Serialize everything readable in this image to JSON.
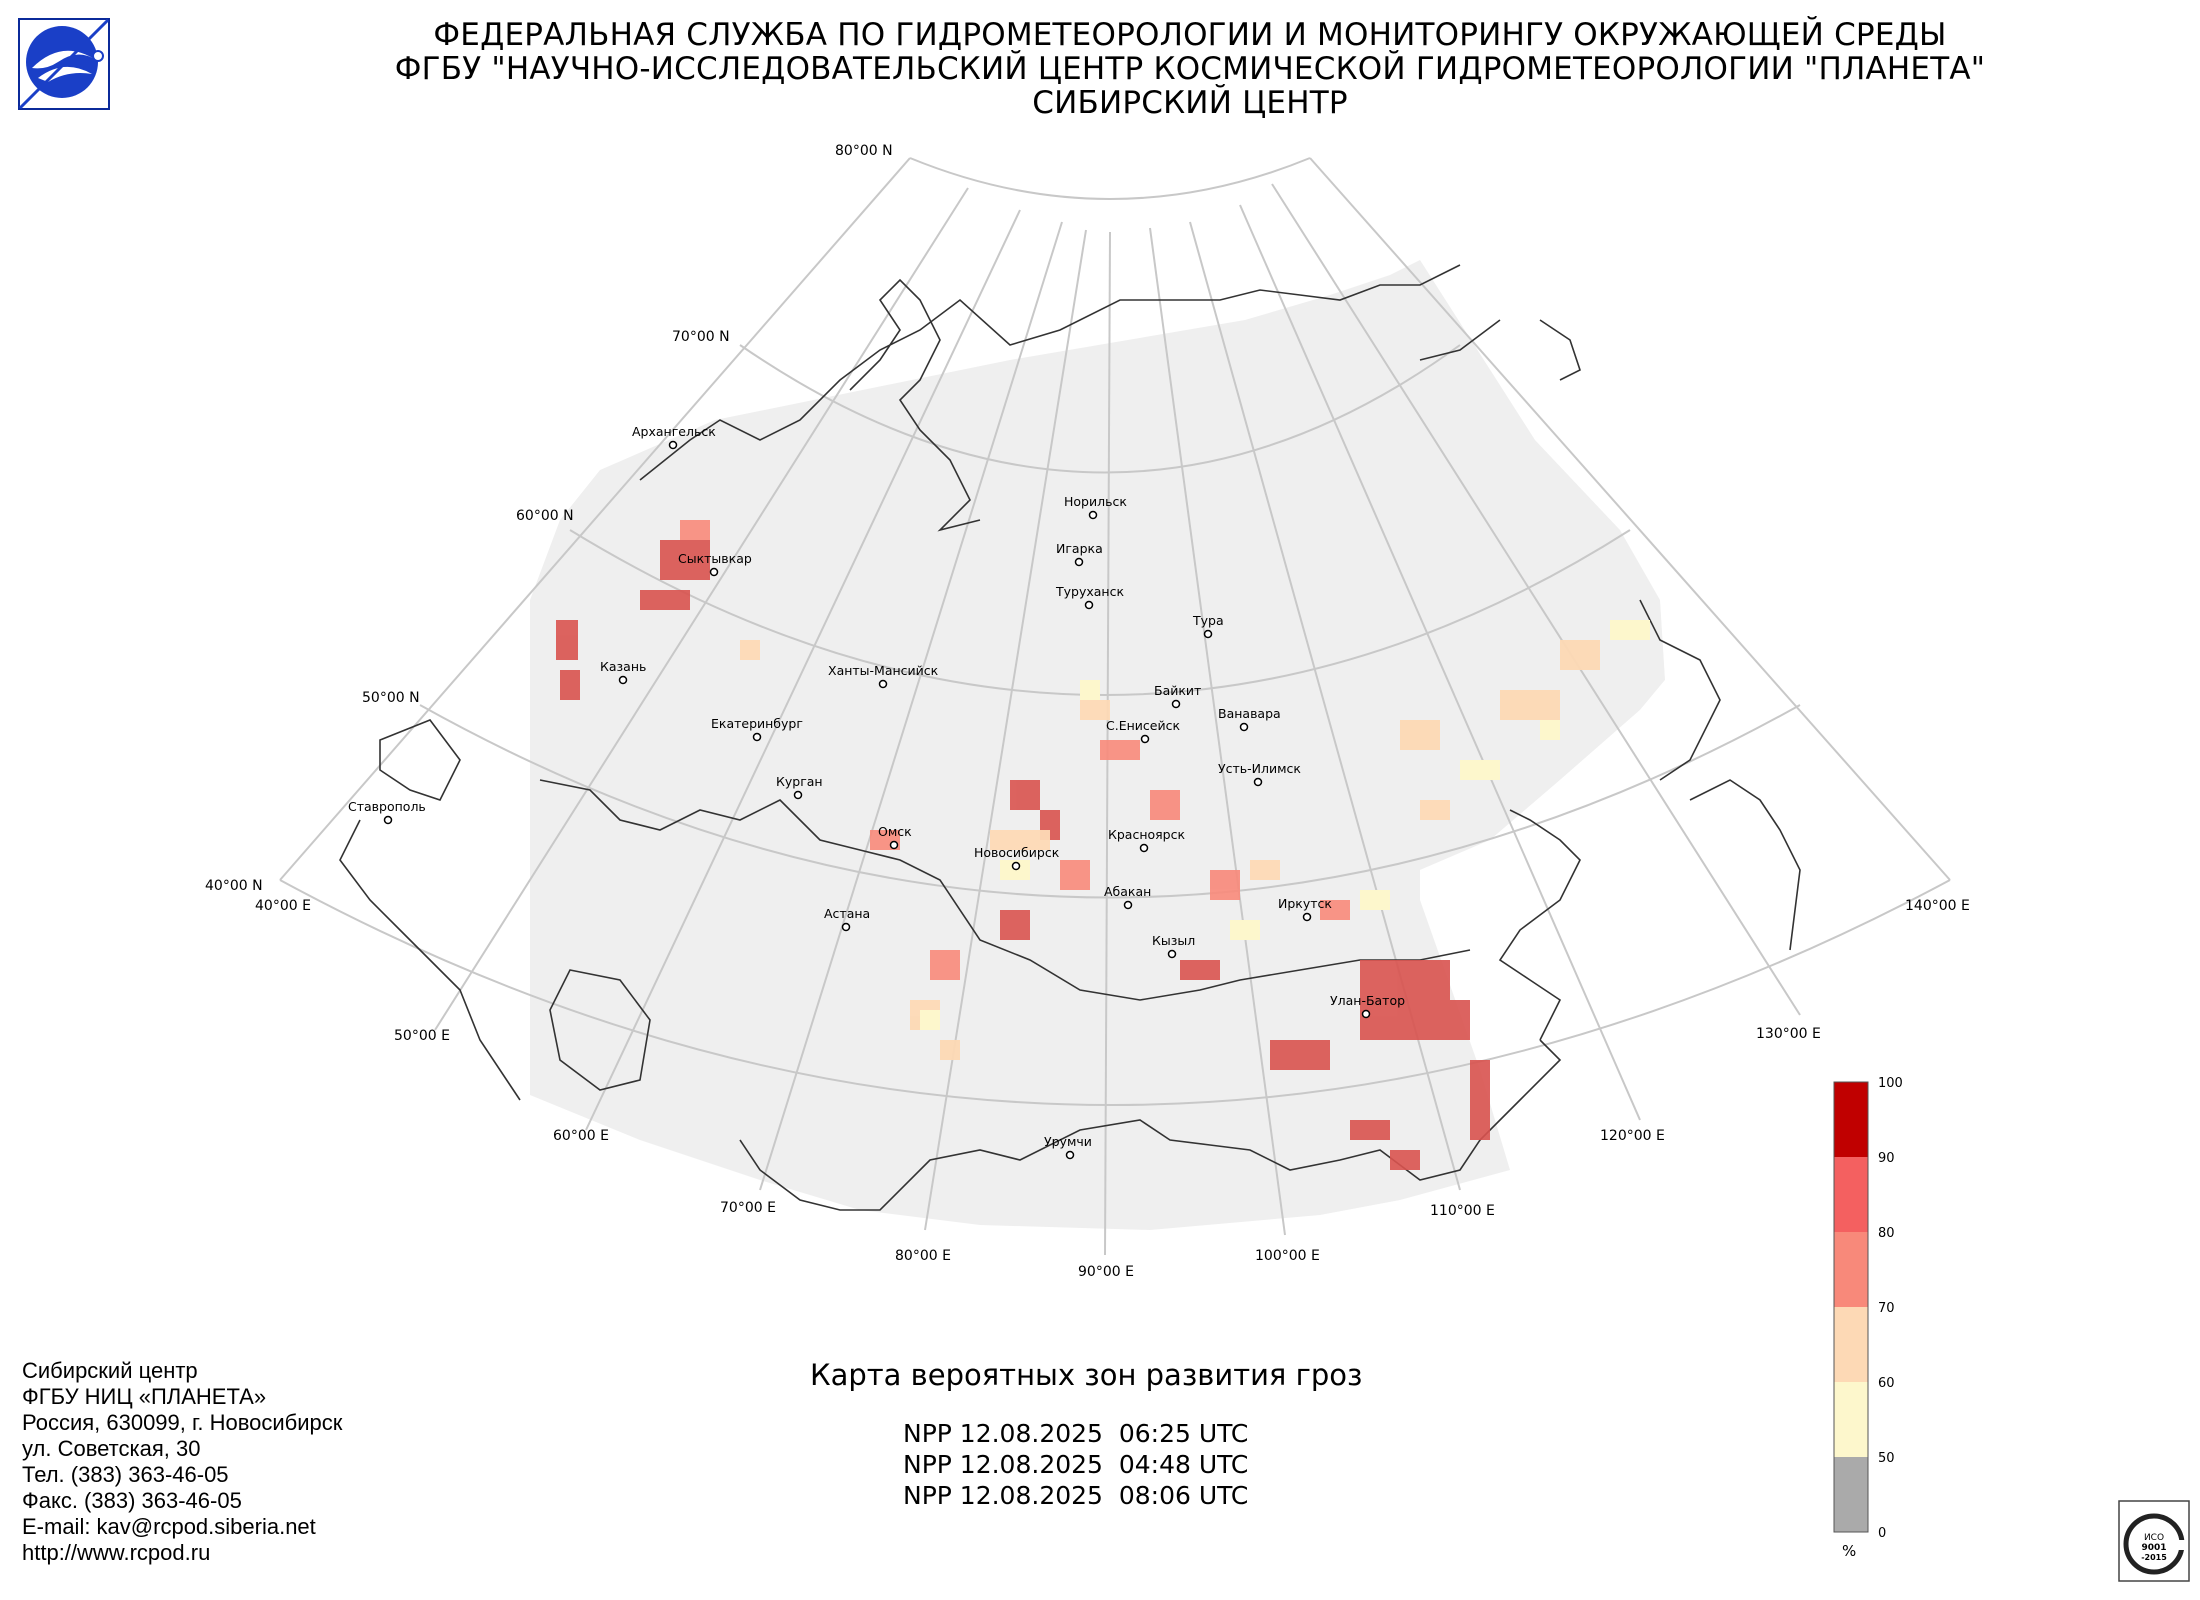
{
  "header": {
    "line1": "ФЕДЕРАЛЬНАЯ СЛУЖБА ПО ГИДРОМЕТЕОРОЛОГИИ И МОНИТОРИНГУ ОКРУЖАЮЩЕЙ СРЕДЫ",
    "line2": "ФГБУ \"НАУЧНО-ИССЛЕДОВАТЕЛЬСКИЙ ЦЕНТР КОСМИЧЕСКОЙ ГИДРОМЕТЕОРОЛОГИИ \"ПЛАНЕТА\"",
    "line3": "СИБИРСКИЙ ЦЕНТР"
  },
  "map": {
    "lat_labels": [
      "80°00 N",
      "70°00 N",
      "60°00 N",
      "50°00 N",
      "40°00 N"
    ],
    "lon_labels": [
      "40°00 E",
      "50°00 E",
      "60°00 E",
      "70°00 E",
      "80°00 E",
      "90°00 E",
      "100°00 E",
      "110°00 E",
      "120°00 E",
      "130°00 E",
      "140°00 E"
    ],
    "cities": [
      "Архангельск",
      "Сыктывкар",
      "Казань",
      "Екатеринбург",
      "Курган",
      "Ставрополь",
      "Омск",
      "Астана",
      "Ханты-Мансийск",
      "Новосибирск",
      "Норильск",
      "Игарка",
      "Туруханск",
      "Тура",
      "Байкит",
      "Ванавара",
      "С.Енисейск",
      "Усть-Илимск",
      "Красноярск",
      "Абакан",
      "Кызыл",
      "Иркутск",
      "Улан-Батор",
      "Урумчи"
    ]
  },
  "legend": {
    "ticks": [
      "100",
      "90",
      "80",
      "70",
      "60",
      "50",
      "0"
    ],
    "colors": [
      "#c00000",
      "#f46060",
      "#f8897a",
      "#fdd9b5",
      "#fdf7cc",
      "#aaaaaa"
    ],
    "unit": "%"
  },
  "footer": {
    "org_lines": [
      "Сибирский центр",
      "ФГБУ НИЦ «ПЛАНЕТА»",
      "Россия, 630099, г. Новосибирск",
      "ул. Советская, 30",
      "Тел. (383) 363-46-05",
      "Факс. (383) 363-46-05",
      "E-mail: kav@rcpod.siberia.net",
      "http://www.rcpod.ru"
    ],
    "map_title": "Карта вероятных зон развития гроз",
    "passes": [
      "NPP 12.08.2025  06:25 UTC",
      "NPP 12.08.2025  04:48 UTC",
      "NPP 12.08.2025  08:06 UTC"
    ]
  },
  "iso_badge": {
    "text1": "ИСО",
    "text2": "9001",
    "text3": "-2015"
  }
}
